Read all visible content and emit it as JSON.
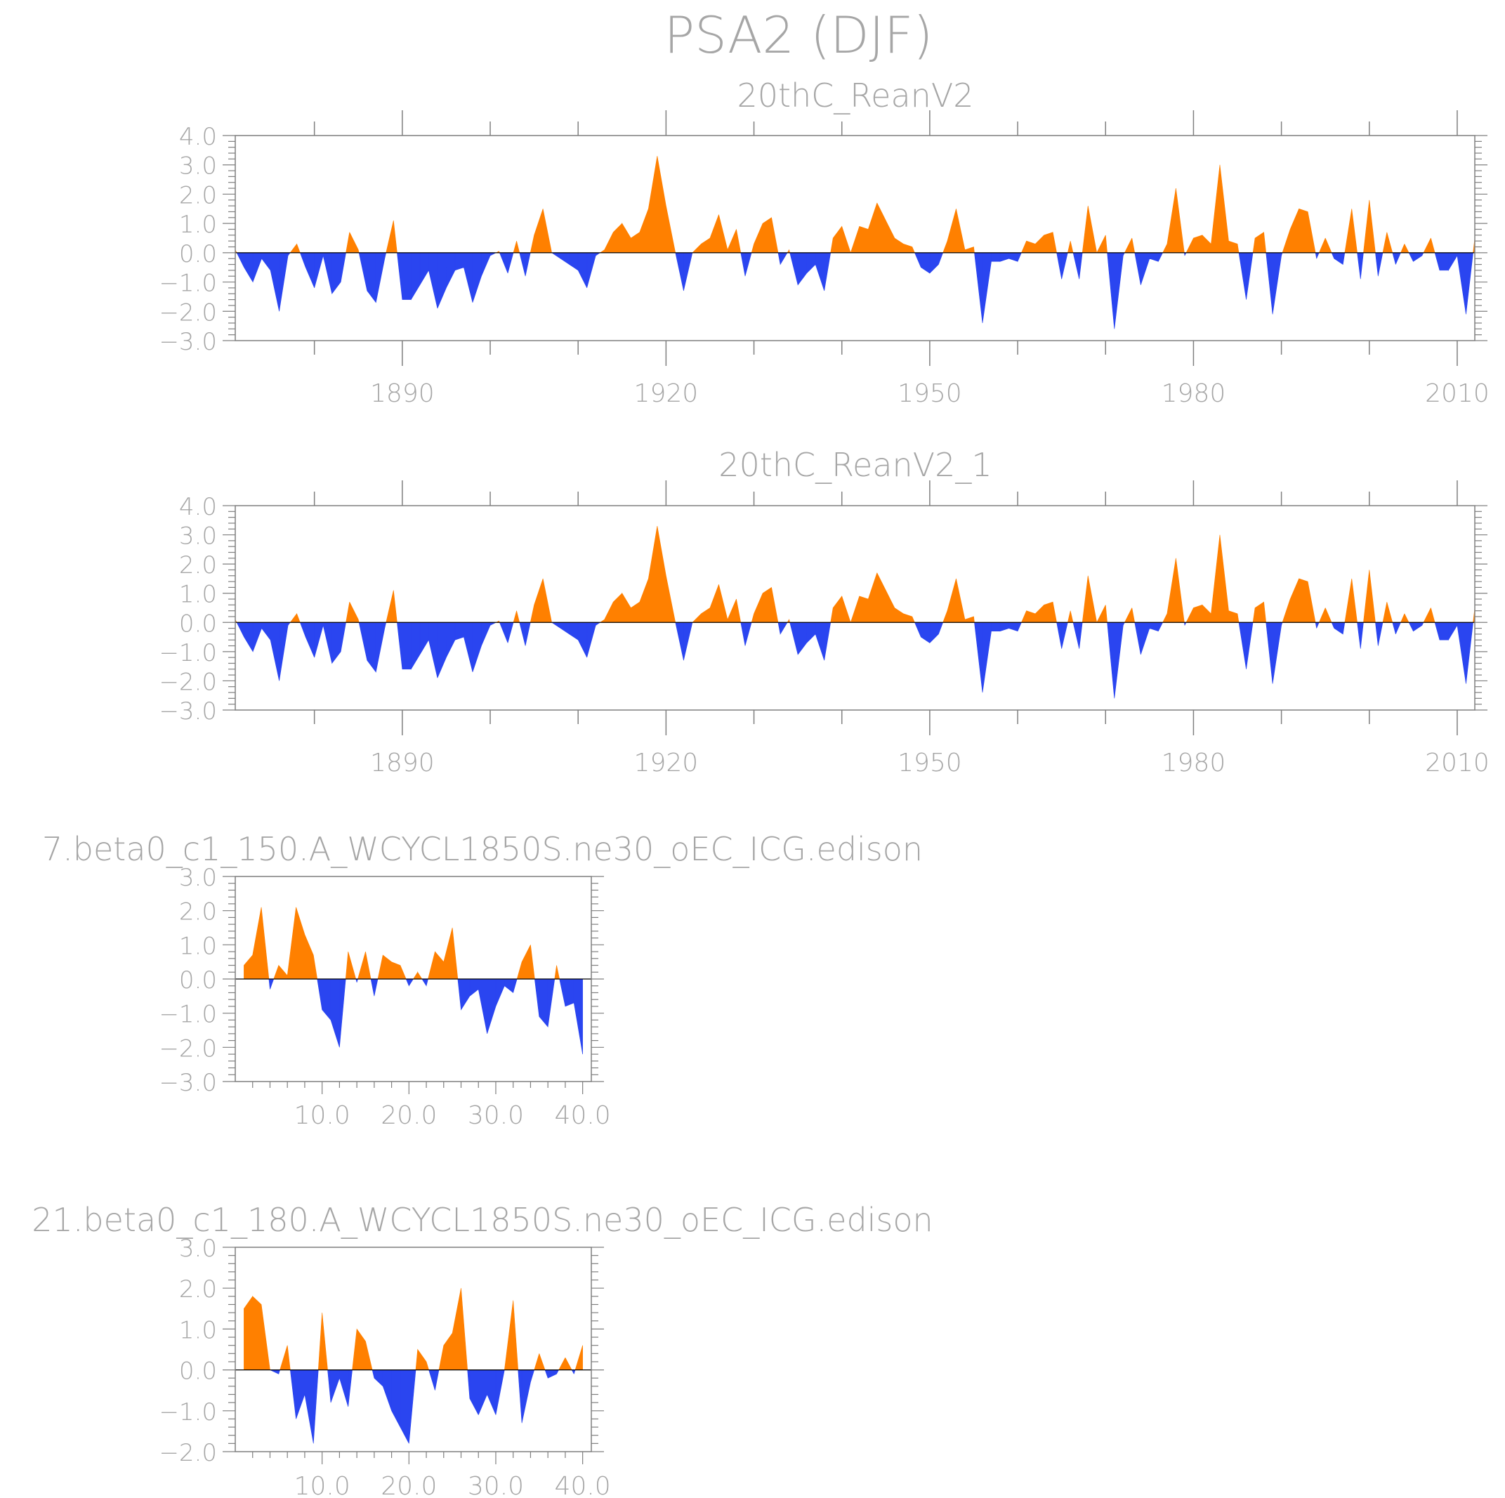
{
  "figure": {
    "title": "PSA2 (DJF)"
  },
  "colors": {
    "positive": "#ff8000",
    "negative": "#2a45f0",
    "axis": "#7f7f7f",
    "text": "#a6a6a6"
  },
  "chart_data": [
    {
      "type": "area",
      "title": "20thC_ReanV2",
      "xlabel": "",
      "ylabel": "",
      "xlim": [
        1871,
        2012
      ],
      "ylim": [
        -3.0,
        4.0
      ],
      "yticks": [
        "4.0",
        "3.0",
        "2.0",
        "1.0",
        "0.0",
        "−1.0",
        "−2.0",
        "−3.0"
      ],
      "yticks_values": [
        4,
        3,
        2,
        1,
        0,
        -1,
        -2,
        -3
      ],
      "xticks": [
        "1890",
        "1920",
        "1950",
        "1980",
        "2010"
      ],
      "xticks_values": [
        1890,
        1920,
        1950,
        1980,
        2010
      ],
      "x": [
        1871,
        1872,
        1873,
        1874,
        1875,
        1876,
        1877,
        1878,
        1879,
        1880,
        1881,
        1882,
        1883,
        1884,
        1885,
        1886,
        1887,
        1888,
        1889,
        1890,
        1891,
        1892,
        1893,
        1894,
        1895,
        1896,
        1897,
        1898,
        1899,
        1900,
        1901,
        1902,
        1903,
        1904,
        1905,
        1906,
        1907,
        1908,
        1909,
        1910,
        1911,
        1912,
        1913,
        1914,
        1915,
        1916,
        1917,
        1918,
        1919,
        1920,
        1921,
        1922,
        1923,
        1924,
        1925,
        1926,
        1927,
        1928,
        1929,
        1930,
        1931,
        1932,
        1933,
        1934,
        1935,
        1936,
        1937,
        1938,
        1939,
        1940,
        1941,
        1942,
        1943,
        1944,
        1945,
        1946,
        1947,
        1948,
        1949,
        1950,
        1951,
        1952,
        1953,
        1954,
        1955,
        1956,
        1957,
        1958,
        1959,
        1960,
        1961,
        1962,
        1963,
        1964,
        1965,
        1966,
        1967,
        1968,
        1969,
        1970,
        1971,
        1972,
        1973,
        1974,
        1975,
        1976,
        1977,
        1978,
        1979,
        1980,
        1981,
        1982,
        1983,
        1984,
        1985,
        1986,
        1987,
        1988,
        1989,
        1990,
        1991,
        1992,
        1993,
        1994,
        1995,
        1996,
        1997,
        1998,
        1999,
        2000,
        2001,
        2002,
        2003,
        2004,
        2005,
        2006,
        2007,
        2008,
        2009,
        2010,
        2011,
        2012
      ],
      "values": [
        0.1,
        -0.5,
        -1.0,
        -0.2,
        -0.6,
        -2.0,
        -0.1,
        0.3,
        -0.5,
        -1.2,
        -0.1,
        -1.4,
        -1.0,
        0.7,
        0.1,
        -1.3,
        -1.7,
        -0.2,
        1.1,
        -1.6,
        -1.6,
        -1.1,
        -0.6,
        -1.9,
        -1.2,
        -0.6,
        -0.5,
        -1.7,
        -0.8,
        -0.1,
        0.05,
        -0.7,
        0.4,
        -0.8,
        0.6,
        1.5,
        0.0,
        -0.2,
        -0.4,
        -0.6,
        -1.2,
        -0.1,
        0.1,
        0.7,
        1.0,
        0.5,
        0.7,
        1.5,
        3.3,
        1.6,
        0.1,
        -1.3,
        0.0,
        0.3,
        0.5,
        1.3,
        0.1,
        0.8,
        -0.8,
        0.3,
        1.0,
        1.2,
        -0.4,
        0.1,
        -1.1,
        -0.7,
        -0.4,
        -1.3,
        0.5,
        0.9,
        0.0,
        0.9,
        0.8,
        1.7,
        1.1,
        0.5,
        0.3,
        0.2,
        -0.5,
        -0.7,
        -0.4,
        0.4,
        1.5,
        0.1,
        0.2,
        -2.4,
        -0.3,
        -0.3,
        -0.2,
        -0.3,
        0.4,
        0.3,
        0.6,
        0.7,
        -0.9,
        0.4,
        -0.9,
        1.6,
        0.0,
        0.6,
        -2.6,
        -0.1,
        0.5,
        -1.1,
        -0.2,
        -0.3,
        0.3,
        2.2,
        -0.1,
        0.5,
        0.6,
        0.3,
        3.0,
        0.4,
        0.3,
        -1.6,
        0.5,
        0.7,
        -2.1,
        -0.1,
        0.8,
        1.5,
        1.4,
        -0.2,
        0.5,
        -0.2,
        -0.4,
        1.5,
        -0.9,
        1.8,
        -0.8,
        0.7,
        -0.4,
        0.3,
        -0.3,
        -0.1,
        0.5,
        -0.6,
        -0.6,
        -0.1,
        -2.1,
        0.5
      ]
    },
    {
      "type": "area",
      "title": "20thC_ReanV2_1",
      "xlabel": "",
      "ylabel": "",
      "xlim": [
        1871,
        2012
      ],
      "ylim": [
        -3.0,
        4.0
      ],
      "yticks": [
        "4.0",
        "3.0",
        "2.0",
        "1.0",
        "0.0",
        "−1.0",
        "−2.0",
        "−3.0"
      ],
      "yticks_values": [
        4,
        3,
        2,
        1,
        0,
        -1,
        -2,
        -3
      ],
      "xticks": [
        "1890",
        "1920",
        "1950",
        "1980",
        "2010"
      ],
      "xticks_values": [
        1890,
        1920,
        1950,
        1980,
        2010
      ],
      "x": [
        1871,
        1872,
        1873,
        1874,
        1875,
        1876,
        1877,
        1878,
        1879,
        1880,
        1881,
        1882,
        1883,
        1884,
        1885,
        1886,
        1887,
        1888,
        1889,
        1890,
        1891,
        1892,
        1893,
        1894,
        1895,
        1896,
        1897,
        1898,
        1899,
        1900,
        1901,
        1902,
        1903,
        1904,
        1905,
        1906,
        1907,
        1908,
        1909,
        1910,
        1911,
        1912,
        1913,
        1914,
        1915,
        1916,
        1917,
        1918,
        1919,
        1920,
        1921,
        1922,
        1923,
        1924,
        1925,
        1926,
        1927,
        1928,
        1929,
        1930,
        1931,
        1932,
        1933,
        1934,
        1935,
        1936,
        1937,
        1938,
        1939,
        1940,
        1941,
        1942,
        1943,
        1944,
        1945,
        1946,
        1947,
        1948,
        1949,
        1950,
        1951,
        1952,
        1953,
        1954,
        1955,
        1956,
        1957,
        1958,
        1959,
        1960,
        1961,
        1962,
        1963,
        1964,
        1965,
        1966,
        1967,
        1968,
        1969,
        1970,
        1971,
        1972,
        1973,
        1974,
        1975,
        1976,
        1977,
        1978,
        1979,
        1980,
        1981,
        1982,
        1983,
        1984,
        1985,
        1986,
        1987,
        1988,
        1989,
        1990,
        1991,
        1992,
        1993,
        1994,
        1995,
        1996,
        1997,
        1998,
        1999,
        2000,
        2001,
        2002,
        2003,
        2004,
        2005,
        2006,
        2007,
        2008,
        2009,
        2010,
        2011,
        2012
      ],
      "values": [
        0.1,
        -0.5,
        -1.0,
        -0.2,
        -0.6,
        -2.0,
        -0.1,
        0.3,
        -0.5,
        -1.2,
        -0.1,
        -1.4,
        -1.0,
        0.7,
        0.1,
        -1.3,
        -1.7,
        -0.2,
        1.1,
        -1.6,
        -1.6,
        -1.1,
        -0.6,
        -1.9,
        -1.2,
        -0.6,
        -0.5,
        -1.7,
        -0.8,
        -0.1,
        0.05,
        -0.7,
        0.4,
        -0.8,
        0.6,
        1.5,
        0.0,
        -0.2,
        -0.4,
        -0.6,
        -1.2,
        -0.1,
        0.1,
        0.7,
        1.0,
        0.5,
        0.7,
        1.5,
        3.3,
        1.6,
        0.1,
        -1.3,
        0.0,
        0.3,
        0.5,
        1.3,
        0.1,
        0.8,
        -0.8,
        0.3,
        1.0,
        1.2,
        -0.4,
        0.1,
        -1.1,
        -0.7,
        -0.4,
        -1.3,
        0.5,
        0.9,
        0.0,
        0.9,
        0.8,
        1.7,
        1.1,
        0.5,
        0.3,
        0.2,
        -0.5,
        -0.7,
        -0.4,
        0.4,
        1.5,
        0.1,
        0.2,
        -2.4,
        -0.3,
        -0.3,
        -0.2,
        -0.3,
        0.4,
        0.3,
        0.6,
        0.7,
        -0.9,
        0.4,
        -0.9,
        1.6,
        0.0,
        0.6,
        -2.6,
        -0.1,
        0.5,
        -1.1,
        -0.2,
        -0.3,
        0.3,
        2.2,
        -0.1,
        0.5,
        0.6,
        0.3,
        3.0,
        0.4,
        0.3,
        -1.6,
        0.5,
        0.7,
        -2.1,
        -0.1,
        0.8,
        1.5,
        1.4,
        -0.2,
        0.5,
        -0.2,
        -0.4,
        1.5,
        -0.9,
        1.8,
        -0.8,
        0.7,
        -0.4,
        0.3,
        -0.3,
        -0.1,
        0.5,
        -0.6,
        -0.6,
        -0.1,
        -2.1,
        0.5
      ]
    },
    {
      "type": "area",
      "title": "7.beta0_c1_150.A_WCYCL1850S.ne30_oEC_ICG.edison",
      "xlabel": "",
      "ylabel": "",
      "xlim": [
        0,
        41
      ],
      "ylim": [
        -3.0,
        3.0
      ],
      "yticks": [
        "3.0",
        "2.0",
        "1.0",
        "0.0",
        "−1.0",
        "−2.0",
        "−3.0"
      ],
      "yticks_values": [
        3,
        2,
        1,
        0,
        -1,
        -2,
        -3
      ],
      "xticks": [
        "10.0",
        "20.0",
        "30.0",
        "40.0"
      ],
      "xticks_values": [
        10,
        20,
        30,
        40
      ],
      "x": [
        1,
        2,
        3,
        4,
        5,
        6,
        7,
        8,
        9,
        10,
        11,
        12,
        13,
        14,
        15,
        16,
        17,
        18,
        19,
        20,
        21,
        22,
        23,
        24,
        25,
        26,
        27,
        28,
        29,
        30,
        31,
        32,
        33,
        34,
        35,
        36,
        37,
        38,
        39,
        40
      ],
      "values": [
        0.4,
        0.7,
        2.1,
        -0.3,
        0.4,
        0.1,
        2.1,
        1.3,
        0.7,
        -0.9,
        -1.2,
        -2.0,
        0.8,
        -0.1,
        0.8,
        -0.5,
        0.7,
        0.5,
        0.4,
        -0.2,
        0.2,
        -0.2,
        0.8,
        0.5,
        1.5,
        -0.9,
        -0.5,
        -0.3,
        -1.6,
        -0.8,
        -0.2,
        -0.4,
        0.5,
        1.0,
        -1.1,
        -1.4,
        0.4,
        -0.8,
        -0.7,
        -2.2
      ]
    },
    {
      "type": "area",
      "title": "21.beta0_c1_180.A_WCYCL1850S.ne30_oEC_ICG.edison",
      "xlabel": "",
      "ylabel": "",
      "xlim": [
        0,
        41
      ],
      "ylim": [
        -2.0,
        3.0
      ],
      "yticks": [
        "3.0",
        "2.0",
        "1.0",
        "0.0",
        "−1.0",
        "−2.0"
      ],
      "yticks_values": [
        3,
        2,
        1,
        0,
        -1,
        -2
      ],
      "xticks": [
        "10.0",
        "20.0",
        "30.0",
        "40.0"
      ],
      "xticks_values": [
        10,
        20,
        30,
        40
      ],
      "x": [
        1,
        2,
        3,
        4,
        5,
        6,
        7,
        8,
        9,
        10,
        11,
        12,
        13,
        14,
        15,
        16,
        17,
        18,
        19,
        20,
        21,
        22,
        23,
        24,
        25,
        26,
        27,
        28,
        29,
        30,
        31,
        32,
        33,
        34,
        35,
        36,
        37,
        38,
        39,
        40
      ],
      "values": [
        1.5,
        1.8,
        1.6,
        0.0,
        -0.1,
        0.6,
        -1.2,
        -0.6,
        -1.8,
        1.4,
        -0.8,
        -0.2,
        -0.9,
        1.0,
        0.7,
        -0.2,
        -0.4,
        -1.0,
        -1.4,
        -1.8,
        0.5,
        0.2,
        -0.5,
        0.6,
        0.9,
        2.0,
        -0.7,
        -1.1,
        -0.6,
        -1.1,
        0.0,
        1.7,
        -1.3,
        -0.3,
        0.4,
        -0.2,
        -0.1,
        0.3,
        -0.1,
        0.6
      ]
    }
  ]
}
